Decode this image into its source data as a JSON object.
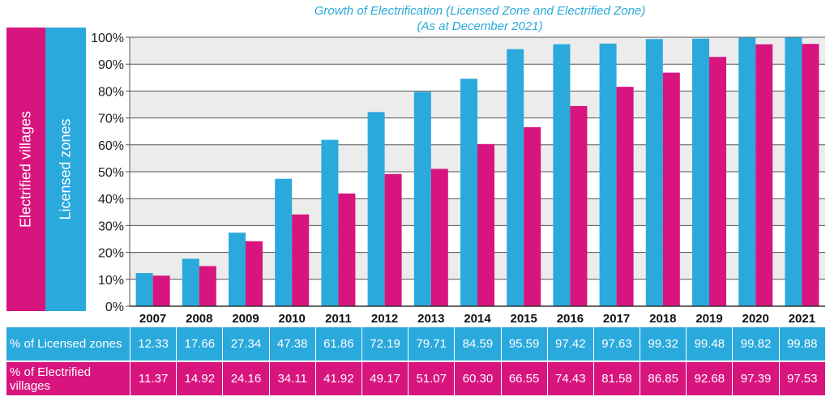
{
  "chart_data": {
    "type": "bar",
    "title": "Growth of Electrification (Licensed Zone and Electrified Zone)",
    "subtitle": "(As at December 2021)",
    "categories": [
      "2007",
      "2008",
      "2009",
      "2010",
      "2011",
      "2012",
      "2013",
      "2014",
      "2015",
      "2016",
      "2017",
      "2018",
      "2019",
      "2020",
      "2021"
    ],
    "series": [
      {
        "name": "Licensed zones",
        "color": "#2aa9dc",
        "values": [
          12.33,
          17.66,
          27.34,
          47.38,
          61.86,
          72.19,
          79.71,
          84.59,
          95.59,
          97.42,
          97.63,
          99.32,
          99.48,
          99.82,
          99.88
        ]
      },
      {
        "name": "Electrified villages",
        "color": "#d8147e",
        "values": [
          11.37,
          14.92,
          24.16,
          34.11,
          41.92,
          49.17,
          51.07,
          60.3,
          66.55,
          74.43,
          81.58,
          86.85,
          92.68,
          97.39,
          97.53
        ]
      }
    ],
    "yticks": [
      "0%",
      "10%",
      "20%",
      "30%",
      "40%",
      "50%",
      "60%",
      "70%",
      "80%",
      "90%",
      "100%"
    ],
    "ylim": [
      0,
      100
    ],
    "xlabel": "",
    "ylabel": "",
    "grid": true
  },
  "legend": {
    "electrified_label": "Electrified villages",
    "licensed_label": "Licensed zones"
  },
  "table": {
    "licensed_header": "% of Licensed zones",
    "licensed_values": [
      "12.33",
      "17.66",
      "27.34",
      "47.38",
      "61.86",
      "72.19",
      "79.71",
      "84.59",
      "95.59",
      "97.42",
      "97.63",
      "99.32",
      "99.48",
      "99.82",
      "99.88"
    ],
    "electrified_header": "% of Electrified villages",
    "electrified_values": [
      "11.37",
      "14.92",
      "24.16",
      "34.11",
      "41.92",
      "49.17",
      "51.07",
      "60.30",
      "66.55",
      "74.43",
      "81.58",
      "86.85",
      "92.68",
      "97.39",
      "97.53"
    ]
  }
}
